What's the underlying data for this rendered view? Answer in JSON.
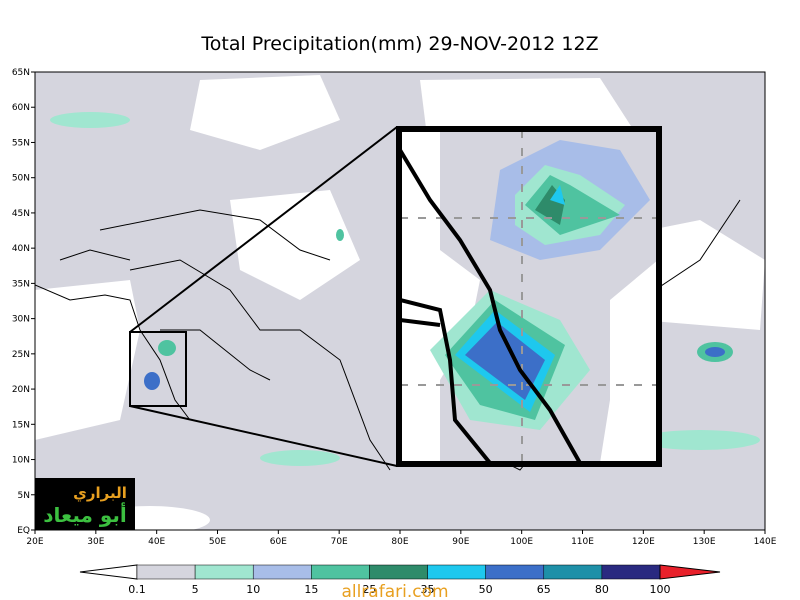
{
  "title": "Total Precipitation(mm) 29-NOV-2012 12Z",
  "lon_labels": [
    "20E",
    "30E",
    "40E",
    "50E",
    "60E",
    "70E",
    "80E",
    "90E",
    "100E",
    "110E",
    "120E",
    "130E",
    "140E"
  ],
  "lat_labels": [
    "EQ",
    "5N",
    "10N",
    "15N",
    "20N",
    "25N",
    "30N",
    "35N",
    "40N",
    "45N",
    "50N",
    "55N",
    "60N",
    "65N"
  ],
  "colorbar_labels": [
    "0.1",
    "5",
    "10",
    "15",
    "25",
    "35",
    "50",
    "65",
    "80",
    "100"
  ],
  "logo": {
    "line1": "البراري",
    "line2": "أبو ميعاد"
  },
  "watermark": "allrafari.com"
}
